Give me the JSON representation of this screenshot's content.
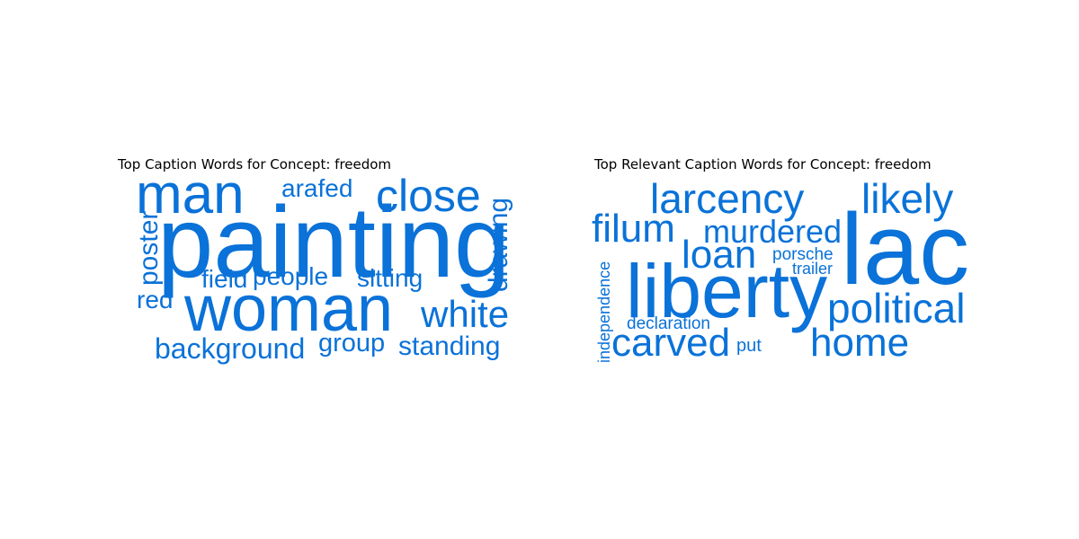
{
  "chart_data": [
    {
      "type": "wordcloud",
      "title": "Top Caption Words for Concept: freedom",
      "color": "#0a72d8",
      "words": [
        {
          "text": "painting",
          "weight": 1.0
        },
        {
          "text": "woman",
          "weight": 0.78
        },
        {
          "text": "man",
          "weight": 0.62
        },
        {
          "text": "close",
          "weight": 0.55
        },
        {
          "text": "white",
          "weight": 0.42
        },
        {
          "text": "background",
          "weight": 0.37
        },
        {
          "text": "standing",
          "weight": 0.34
        },
        {
          "text": "drawing",
          "weight": 0.32
        },
        {
          "text": "poster",
          "weight": 0.32
        },
        {
          "text": "people",
          "weight": 0.31
        },
        {
          "text": "group",
          "weight": 0.31
        },
        {
          "text": "arafed",
          "weight": 0.3
        },
        {
          "text": "sitting",
          "weight": 0.3
        },
        {
          "text": "field",
          "weight": 0.3
        },
        {
          "text": "red",
          "weight": 0.3
        }
      ]
    },
    {
      "type": "wordcloud",
      "title": "Top Relevant Caption Words for Concept: freedom",
      "color": "#0a72d8",
      "words": [
        {
          "text": "lac",
          "weight": 1.0
        },
        {
          "text": "liberty",
          "weight": 0.72
        },
        {
          "text": "political",
          "weight": 0.45
        },
        {
          "text": "larcency",
          "weight": 0.44
        },
        {
          "text": "likely",
          "weight": 0.44
        },
        {
          "text": "filum",
          "weight": 0.42
        },
        {
          "text": "home",
          "weight": 0.42
        },
        {
          "text": "carved",
          "weight": 0.42
        },
        {
          "text": "loan",
          "weight": 0.42
        },
        {
          "text": "murdered",
          "weight": 0.33
        },
        {
          "text": "independence",
          "weight": 0.2
        },
        {
          "text": "declaration",
          "weight": 0.2
        },
        {
          "text": "porsche",
          "weight": 0.2
        },
        {
          "text": "trailer",
          "weight": 0.2
        },
        {
          "text": "put",
          "weight": 0.2
        }
      ]
    }
  ]
}
